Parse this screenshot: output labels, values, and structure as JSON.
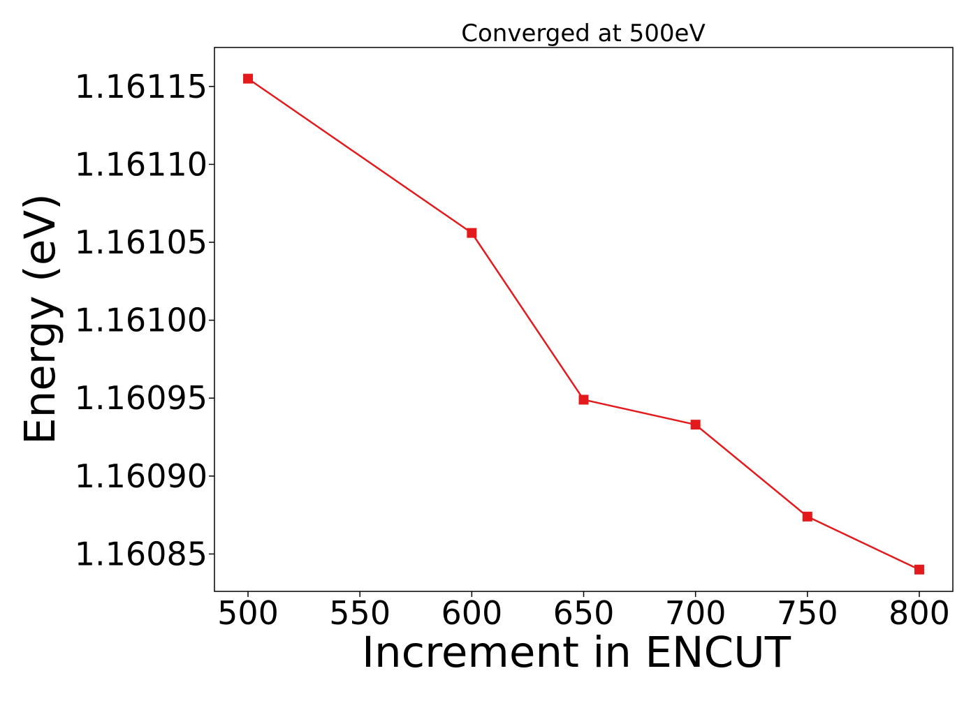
{
  "chart_data": {
    "type": "line",
    "title": "Converged at 500eV",
    "xlabel": "Increment in ENCUT",
    "ylabel": "Energy (eV)",
    "x": [
      500,
      600,
      650,
      700,
      750,
      800
    ],
    "series": [
      {
        "values": [
          1.161155,
          1.161056,
          1.160949,
          1.160933,
          1.160874,
          1.16084
        ],
        "color": "#e31a1c",
        "marker": "square"
      }
    ],
    "xticks": [
      500,
      550,
      600,
      650,
      700,
      750,
      800
    ],
    "xtick_labels": [
      "500",
      "550",
      "600",
      "650",
      "700",
      "750",
      "800"
    ],
    "yticks": [
      1.16085,
      1.1609,
      1.16095,
      1.161,
      1.16105,
      1.1611,
      1.16115
    ],
    "ytick_labels": [
      "1.16085",
      "1.16090",
      "1.16095",
      "1.16100",
      "1.16105",
      "1.16110",
      "1.16115"
    ],
    "xlim": [
      485,
      815
    ],
    "ylim": [
      1.160826,
      1.161175
    ],
    "grid": false,
    "legend": "none"
  }
}
